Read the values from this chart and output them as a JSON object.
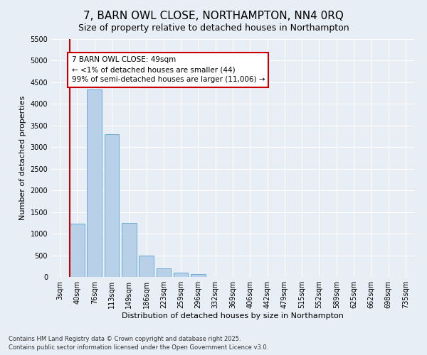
{
  "title": "7, BARN OWL CLOSE, NORTHAMPTON, NN4 0RQ",
  "subtitle": "Size of property relative to detached houses in Northampton",
  "xlabel": "Distribution of detached houses by size in Northampton",
  "ylabel": "Number of detached properties",
  "categories": [
    "3sqm",
    "40sqm",
    "76sqm",
    "113sqm",
    "149sqm",
    "186sqm",
    "223sqm",
    "259sqm",
    "296sqm",
    "332sqm",
    "369sqm",
    "406sqm",
    "442sqm",
    "479sqm",
    "515sqm",
    "552sqm",
    "589sqm",
    "625sqm",
    "662sqm",
    "698sqm",
    "735sqm"
  ],
  "values": [
    0,
    1230,
    4330,
    3300,
    1250,
    500,
    200,
    100,
    60,
    0,
    0,
    0,
    0,
    0,
    0,
    0,
    0,
    0,
    0,
    0,
    0
  ],
  "bar_color": "#b8d0e8",
  "bar_edge_color": "#6aaad4",
  "vline_color": "#cc0000",
  "vline_x_index": 0.55,
  "annotation_text": "7 BARN OWL CLOSE: 49sqm\n← <1% of detached houses are smaller (44)\n99% of semi-detached houses are larger (11,006) →",
  "annotation_box_facecolor": "#ffffff",
  "annotation_box_edgecolor": "#cc0000",
  "ylim": [
    0,
    5500
  ],
  "yticks": [
    0,
    500,
    1000,
    1500,
    2000,
    2500,
    3000,
    3500,
    4000,
    4500,
    5000,
    5500
  ],
  "footnote1": "Contains HM Land Registry data © Crown copyright and database right 2025.",
  "footnote2": "Contains public sector information licensed under the Open Government Licence v3.0.",
  "background_color": "#e8eef5",
  "plot_bg_color": "#e8eef5",
  "title_fontsize": 11,
  "subtitle_fontsize": 9,
  "axis_label_fontsize": 8,
  "tick_fontsize": 7,
  "annotation_fontsize": 7.5,
  "footnote_fontsize": 6
}
